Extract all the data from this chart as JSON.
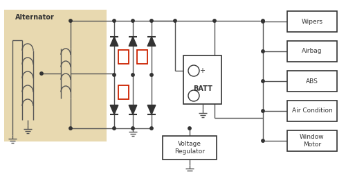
{
  "bg_color": "#ffffff",
  "alt_bg_color": "#e8d9b0",
  "line_color": "#555555",
  "red_color": "#cc2200",
  "dark_color": "#333333",
  "load_labels": [
    "Wipers",
    "Airbag",
    "ABS",
    "Air Condition",
    "Window\nMotor"
  ],
  "voltage_regulator_label": "Voltage\nRegulator",
  "battery_label": "BATT",
  "alternator_label": "Alternator"
}
